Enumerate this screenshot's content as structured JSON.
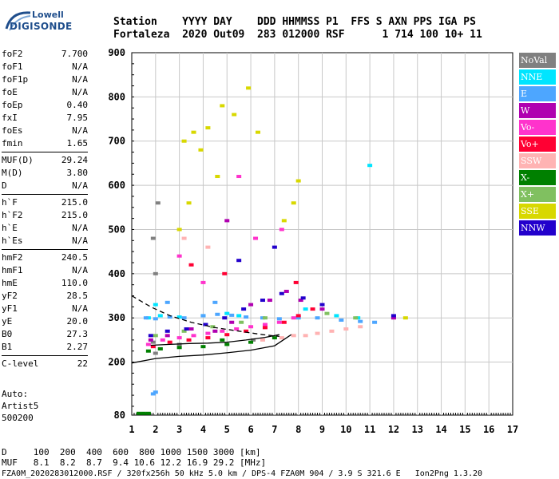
{
  "logo": {
    "line1": "Lowell",
    "line2": "DIGISONDE"
  },
  "header": {
    "line1": "Station    YYYY DAY    DDD HHMMSS P1  FFS S AXN PPS IGA PS",
    "line2": "Fortaleza  2020 Out09  283 012000 RSF      1 714 100 10+ 11"
  },
  "params": [
    {
      "name": "foF2",
      "value": "7.700"
    },
    {
      "name": "foF1",
      "value": "N/A"
    },
    {
      "name": "foF1p",
      "value": "N/A"
    },
    {
      "name": "foE",
      "value": "N/A"
    },
    {
      "name": "foEp",
      "value": "0.40"
    },
    {
      "name": "fxI",
      "value": "7.95"
    },
    {
      "name": "foEs",
      "value": "N/A"
    },
    {
      "name": "fmin",
      "value": "1.65"
    },
    {
      "name": "MUF(D)",
      "value": "29.24"
    },
    {
      "name": "M(D)",
      "value": "3.80"
    },
    {
      "name": "D",
      "value": "N/A"
    },
    {
      "name": "h`F",
      "value": "215.0"
    },
    {
      "name": "h`F2",
      "value": "215.0"
    },
    {
      "name": "h`E",
      "value": "N/A"
    },
    {
      "name": "h`Es",
      "value": "N/A"
    },
    {
      "name": "hmF2",
      "value": "240.5"
    },
    {
      "name": "hmF1",
      "value": "N/A"
    },
    {
      "name": "hmE",
      "value": "110.0"
    },
    {
      "name": "yF2",
      "value": "28.5"
    },
    {
      "name": "yF1",
      "value": "N/A"
    },
    {
      "name": "yE",
      "value": "20.0"
    },
    {
      "name": "B0",
      "value": "27.3"
    },
    {
      "name": "B1",
      "value": "2.27"
    },
    {
      "name": "C-level",
      "value": "22"
    }
  ],
  "auto": [
    "Auto:",
    "Artist5",
    "500200"
  ],
  "legend": [
    {
      "label": "NoVal",
      "color": "#808080"
    },
    {
      "label": "NNE",
      "color": "#00e5ff"
    },
    {
      "label": "E",
      "color": "#4da6ff"
    },
    {
      "label": "W",
      "color": "#b000b0"
    },
    {
      "label": "Vo-",
      "color": "#ff33cc"
    },
    {
      "label": "Vo+",
      "color": "#ff0033"
    },
    {
      "label": "SSW",
      "color": "#ffb3b3"
    },
    {
      "label": "X-",
      "color": "#008000"
    },
    {
      "label": "X+",
      "color": "#80c060"
    },
    {
      "label": "SSE",
      "color": "#d8d800"
    },
    {
      "label": "NNW",
      "color": "#2200cc"
    }
  ],
  "bottom": {
    "dline": "D     100  200  400  600  800 1000 1500 3000 [km]",
    "mufline": "MUF   8.1  8.2  8.7  9.4 10.6 12.2 16.9 29.2 [MHz]",
    "footer": "FZA0M_2020283012000.RSF / 320fx256h 50 kHz 5.0 km / DPS-4 FZA0M 904 / 3.9 S 321.6 E   Ion2Png 1.3.20"
  },
  "chart_data": {
    "type": "scatter",
    "title": "",
    "xlabel": "",
    "ylabel": "",
    "xlim": [
      1,
      17
    ],
    "ylim": [
      80,
      900
    ],
    "x_ticks": [
      1,
      2,
      3,
      4,
      5,
      6,
      7,
      8,
      9,
      10,
      11,
      12,
      13,
      14,
      15,
      16,
      17
    ],
    "y_ticks": [
      80,
      200,
      300,
      400,
      500,
      600,
      700,
      800,
      900
    ],
    "grid": true,
    "legend_placement": "right",
    "series": [
      {
        "name": "NoVal",
        "color": "#808080",
        "points": [
          [
            2.0,
            220
          ],
          [
            2.2,
            230
          ],
          [
            1.9,
            245
          ],
          [
            2.0,
            400
          ],
          [
            1.9,
            480
          ],
          [
            2.1,
            560
          ],
          [
            3.0,
            240
          ],
          [
            6.1,
            250
          ]
        ]
      },
      {
        "name": "NNE",
        "color": "#00e5ff",
        "points": [
          [
            1.7,
            300
          ],
          [
            2.2,
            305
          ],
          [
            3.0,
            302
          ],
          [
            4.0,
            305
          ],
          [
            5.0,
            310
          ],
          [
            5.5,
            305
          ],
          [
            8.3,
            320
          ],
          [
            9.6,
            305
          ],
          [
            10.5,
            300
          ],
          [
            11.0,
            645
          ],
          [
            2.0,
            330
          ]
        ]
      },
      {
        "name": "E",
        "color": "#4da6ff",
        "points": [
          [
            1.6,
            300
          ],
          [
            2.0,
            298
          ],
          [
            2.6,
            302
          ],
          [
            3.2,
            300
          ],
          [
            4.0,
            305
          ],
          [
            4.6,
            308
          ],
          [
            5.2,
            306
          ],
          [
            5.8,
            302
          ],
          [
            6.5,
            300
          ],
          [
            7.2,
            298
          ],
          [
            8.0,
            300
          ],
          [
            8.8,
            300
          ],
          [
            9.8,
            295
          ],
          [
            10.6,
            292
          ],
          [
            11.2,
            290
          ],
          [
            2.0,
            132
          ],
          [
            1.9,
            128
          ],
          [
            2.5,
            335
          ],
          [
            4.5,
            335
          ]
        ]
      },
      {
        "name": "W",
        "color": "#b000b0",
        "points": [
          [
            1.8,
            250
          ],
          [
            2.5,
            260
          ],
          [
            3.5,
            275
          ],
          [
            4.5,
            270
          ],
          [
            5.2,
            290
          ],
          [
            6.0,
            330
          ],
          [
            6.8,
            340
          ],
          [
            7.5,
            360
          ],
          [
            8.1,
            340
          ],
          [
            9.0,
            320
          ],
          [
            12.0,
            300
          ],
          [
            5.0,
            520
          ]
        ]
      },
      {
        "name": "Vo-",
        "color": "#ff33cc",
        "points": [
          [
            1.7,
            240
          ],
          [
            2.3,
            250
          ],
          [
            3.0,
            255
          ],
          [
            3.6,
            260
          ],
          [
            4.2,
            265
          ],
          [
            4.8,
            270
          ],
          [
            5.4,
            275
          ],
          [
            6.0,
            280
          ],
          [
            6.6,
            285
          ],
          [
            7.2,
            290
          ],
          [
            7.8,
            300
          ],
          [
            3.0,
            440
          ],
          [
            4.0,
            380
          ],
          [
            5.5,
            620
          ],
          [
            6.2,
            480
          ],
          [
            7.3,
            500
          ]
        ]
      },
      {
        "name": "Vo+",
        "color": "#ff0033",
        "points": [
          [
            1.9,
            235
          ],
          [
            2.6,
            245
          ],
          [
            3.4,
            250
          ],
          [
            4.2,
            255
          ],
          [
            5.0,
            262
          ],
          [
            5.8,
            270
          ],
          [
            6.6,
            278
          ],
          [
            7.4,
            290
          ],
          [
            8.0,
            305
          ],
          [
            8.6,
            320
          ],
          [
            3.5,
            420
          ],
          [
            4.9,
            400
          ],
          [
            7.9,
            380
          ]
        ]
      },
      {
        "name": "SSW",
        "color": "#ffb3b3",
        "points": [
          [
            6.5,
            250
          ],
          [
            7.3,
            255
          ],
          [
            7.8,
            260
          ],
          [
            8.3,
            260
          ],
          [
            8.8,
            265
          ],
          [
            9.4,
            270
          ],
          [
            10.0,
            275
          ],
          [
            10.6,
            280
          ],
          [
            3.2,
            480
          ],
          [
            4.2,
            460
          ]
        ]
      },
      {
        "name": "X-",
        "color": "#008000",
        "points": [
          [
            1.7,
            225
          ],
          [
            2.2,
            230
          ],
          [
            3.0,
            233
          ],
          [
            4.0,
            235
          ],
          [
            5.0,
            240
          ],
          [
            6.0,
            245
          ],
          [
            7.0,
            255
          ],
          [
            1.3,
            84
          ],
          [
            1.5,
            84
          ],
          [
            1.7,
            84
          ],
          [
            4.8,
            250
          ]
        ]
      },
      {
        "name": "X+",
        "color": "#80c060",
        "points": [
          [
            2.0,
            260
          ],
          [
            3.2,
            270
          ],
          [
            4.4,
            280
          ],
          [
            5.6,
            290
          ],
          [
            6.6,
            300
          ],
          [
            9.2,
            310
          ],
          [
            10.4,
            300
          ]
        ]
      },
      {
        "name": "SSE",
        "color": "#d8d800",
        "points": [
          [
            3.2,
            700
          ],
          [
            3.6,
            720
          ],
          [
            3.9,
            680
          ],
          [
            4.2,
            730
          ],
          [
            4.8,
            780
          ],
          [
            5.3,
            760
          ],
          [
            5.9,
            820
          ],
          [
            6.3,
            720
          ],
          [
            3.4,
            560
          ],
          [
            3.0,
            500
          ],
          [
            7.8,
            560
          ],
          [
            8.0,
            610
          ],
          [
            7.4,
            520
          ],
          [
            4.6,
            620
          ],
          [
            12.5,
            300
          ]
        ]
      },
      {
        "name": "NNW",
        "color": "#2200cc",
        "points": [
          [
            1.8,
            260
          ],
          [
            2.5,
            270
          ],
          [
            3.3,
            275
          ],
          [
            4.1,
            285
          ],
          [
            4.9,
            300
          ],
          [
            5.7,
            320
          ],
          [
            6.5,
            340
          ],
          [
            7.3,
            355
          ],
          [
            8.2,
            345
          ],
          [
            9.0,
            330
          ],
          [
            12.0,
            305
          ],
          [
            5.5,
            430
          ],
          [
            7.0,
            460
          ]
        ]
      }
    ],
    "overlays": [
      {
        "name": "extraordinary trace",
        "color": "#000000",
        "style": "dashed",
        "points": [
          [
            1.0,
            350
          ],
          [
            1.8,
            325
          ],
          [
            2.6,
            305
          ],
          [
            3.5,
            290
          ],
          [
            4.5,
            278
          ],
          [
            5.5,
            270
          ],
          [
            6.5,
            262
          ],
          [
            7.2,
            258
          ]
        ]
      },
      {
        "name": "profile",
        "color": "#000000",
        "style": "solid",
        "points": [
          [
            1.0,
            198
          ],
          [
            2.0,
            208
          ],
          [
            3.0,
            213
          ],
          [
            4.0,
            216
          ],
          [
            5.0,
            221
          ],
          [
            6.0,
            227
          ],
          [
            7.0,
            237
          ],
          [
            7.7,
            262
          ]
        ]
      },
      {
        "name": "trace",
        "color": "#000000",
        "style": "solid",
        "points": [
          [
            1.8,
            238
          ],
          [
            2.6,
            240
          ],
          [
            3.4,
            242
          ],
          [
            4.2,
            243
          ],
          [
            5.0,
            245
          ],
          [
            5.8,
            250
          ],
          [
            6.6,
            256
          ],
          [
            7.2,
            262
          ]
        ]
      }
    ]
  }
}
